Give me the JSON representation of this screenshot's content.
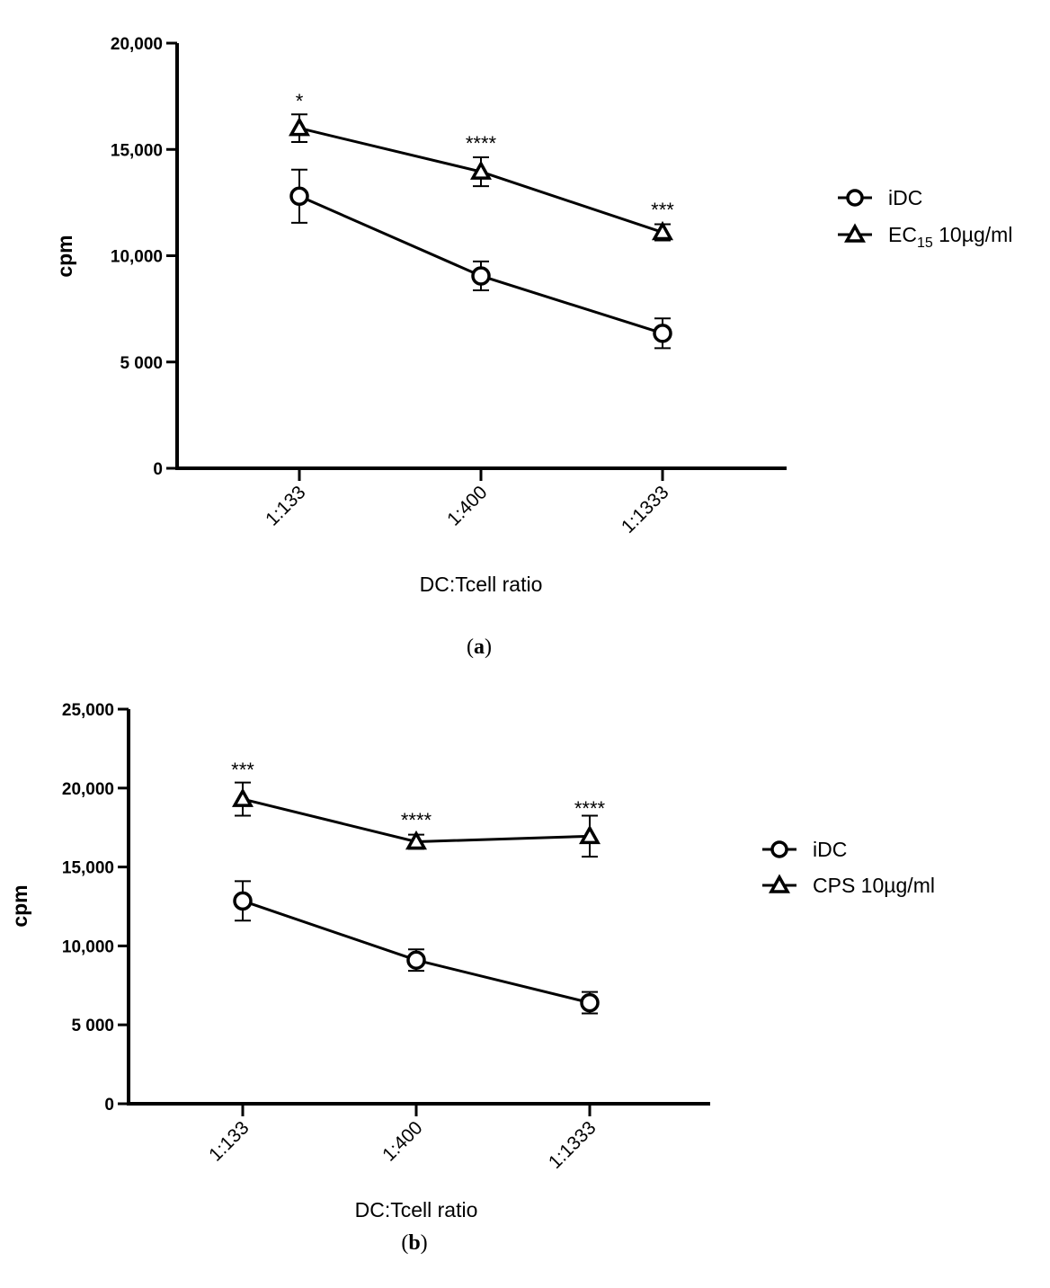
{
  "chart_data": [
    {
      "type": "line",
      "panel": "a",
      "categories": [
        "1:133",
        "1:400",
        "1:1333"
      ],
      "xlabel": "DC:Tcell ratio",
      "ylabel": "cpm",
      "ylim": [
        0,
        20000
      ],
      "yticks": [
        0,
        5000,
        10000,
        15000,
        20000
      ],
      "ytick_labels": [
        "0",
        "5 000",
        "10,000",
        "15,000",
        "20,000"
      ],
      "series": [
        {
          "name": "iDC",
          "legend_main": "iDC",
          "legend_sub": "",
          "legend_tail": "",
          "marker": "circle",
          "values": [
            12800,
            9050,
            6350
          ],
          "errors": [
            1250,
            680,
            700
          ]
        },
        {
          "name": "EC15 10µg/ml",
          "legend_main": "EC",
          "legend_sub": "15",
          "legend_tail": " 10µg/ml",
          "marker": "triangle",
          "values": [
            16000,
            13950,
            11100
          ],
          "errors": [
            650,
            680,
            380
          ]
        }
      ],
      "annotations": [
        "*",
        "****",
        "***"
      ],
      "caption": "a",
      "legend_position": "right"
    },
    {
      "type": "line",
      "panel": "b",
      "categories": [
        "1:133",
        "1:400",
        "1:1333"
      ],
      "xlabel": "DC:Tcell ratio",
      "ylabel": "cpm",
      "ylim": [
        0,
        25000
      ],
      "yticks": [
        0,
        5000,
        10000,
        15000,
        20000,
        25000
      ],
      "ytick_labels": [
        "0",
        "5 000",
        "10,000",
        "15,000",
        "20,000",
        "25,000"
      ],
      "series": [
        {
          "name": "iDC",
          "legend_main": "iDC",
          "legend_sub": "",
          "legend_tail": "",
          "marker": "circle",
          "values": [
            12850,
            9100,
            6400
          ],
          "errors": [
            1250,
            680,
            680
          ]
        },
        {
          "name": "CPS 10µg/ml",
          "legend_main": "CPS 10µg/ml",
          "legend_sub": "",
          "legend_tail": "",
          "marker": "triangle",
          "values": [
            19300,
            16600,
            16950
          ],
          "errors": [
            1050,
            450,
            1300
          ]
        }
      ],
      "annotations": [
        "***",
        "****",
        "****"
      ],
      "caption": "b",
      "legend_position": "right"
    }
  ]
}
